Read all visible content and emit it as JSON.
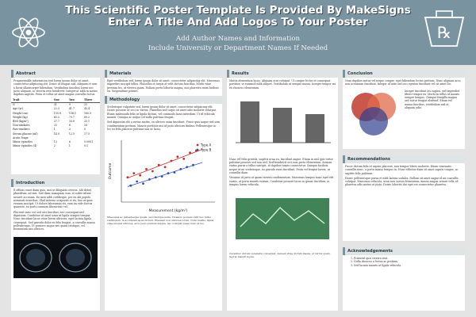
{
  "header": {
    "title_line1": "This Scientific Poster Template Is Provided By MakeSigns",
    "title_line2": "Enter A Title And Add Logos To Your Poster",
    "authors": "Add Author Names and Information",
    "affiliation": "Include University or Department Names If Needed"
  },
  "logos": {
    "left": "atom-logo",
    "right": "rx-logo"
  },
  "sections": {
    "abstract": {
      "title": "Abstract",
      "text": "Fragmentable information text lorem ipsum dolor sit amet, consectetur adipiscing elit. Donec id feugiat nisl. Aliquam et sem a lacus ullamcorper bibendum. Vestibulum faucibus lorem nec justo aliquam, ac viverra eros hendrerit. Integer ut nibh in metus dapibus sagittis. Proin et tellus sit amet magna convallis luctus."
    },
    "table": {
      "headers": [
        "Trait",
        "One",
        "Two",
        "Three"
      ],
      "rows": [
        [
          "N",
          "31",
          "9",
          "21"
        ],
        [
          "Age (yr)",
          "22.3",
          "41.7",
          "43.4"
        ],
        [
          "Height (cm)",
          "155.8",
          "156.1",
          "160.9"
        ],
        [
          "Weight (kg)",
          "65.3",
          "79.7",
          "60.2"
        ],
        [
          "BMI (kg/m²)",
          "27.7",
          "33.0",
          "25.1"
        ],
        [
          "Non-smokers",
          "25",
          "6",
          "16"
        ],
        [
          "Past-smokers",
          "1",
          "3",
          "0"
        ],
        [
          "Serum glucose (ml)",
          "14.9",
          "12.5",
          "17.5"
        ],
        [
          "Acute Stage",
          "",
          "",
          ""
        ],
        [
          "Minor episodes",
          "13",
          "6",
          "0.0001"
        ],
        [
          "Minor episodes (4)",
          "2",
          "1",
          "0.1"
        ]
      ]
    },
    "introduction": {
      "title": "Introduction",
      "text": "Il officiis esset diam quis, mei ut diliquam ceteros. Alii debet phaedrum, ad mei. Sed diam numquam cum, et nobis tritani iuvaret accusam. Eu mea nibh cotidieque, per eu alii populo nominati erroribus. Illud aeterno scripserit ei vis, has ut quas veniam suscipit. Ut dolore laboramus vis, eam an vide doctus quaestio, eu purto omnium liberavisse vel.",
      "text2": "Placerat nunc est sed orci faucibus, nec consequat nisl dignissim. Curabitur sit amet urna ut ligula semper tempus. Nunc tincidunt lacus vitae lorem ultricies, eget lacinia ligula consequat. Sed gravida dolor eu felis feugiat, a convallis massa pellentesque. Ut posuere augue nec quam tristique, vel fermentum nisi ultrices."
    },
    "materials": {
      "title": "Materials",
      "text": "Eget vestibulum sed, lorem ipsum dolor sit amet, consectetur adipiscing elit. Maecenas imperdiet suscipit tellus. Phasellus et turpis at velit dictum faucibus. Morbi vitae pretium leo, ut viverra quam. Nullam porta lobortis magna, non pharetra enim facilisis eu. Suspendisse potenti."
    },
    "methodology": {
      "title": "Methodology",
      "text": "Scelerisque vulputate sed, lorem ipsum dolor sit amet, consectetur adipiscing elit. Donec posuere ut orci ac varius. Phasellus sed turpis sit amet odio molestie volutpat. Etiam malesuada felis ut ligula dictum, vel commodo lacus interdum. Ut id vehicula mauris. Quisque ac neque vel nulla pulvinar feugiat.",
      "text2": "Sed dignissim elit a metus mattis, eu ultrices enim tincidunt. Fusce quis augue sed sem condimentum pretium. Mauris porttitor nisi id justo ultricies finibus. Pellentesque ac leo eu felis placerat pulvinar non ut lacus."
    },
    "chart_caption": "Maecenas ac pellentesque ipsum, sed tristique nulla. Vivamus posuere velit nec tellus vestibulum, in accumsan lacus dictum. Praesent non ultricies lorem. Nunc mattis, ligula vitae feugiat ultricies, arcu justo pretium magna, nec volutpat quam nunc at leo.",
    "results": {
      "title": "Results",
      "text": "Mattis elementum lacus. Aliquam erat volutpat. Ut congue lectus et consequat porttitor, ut euismod nibh aliquet. Vestibulum at semper massa. Integer tempor mi eu rhoncus elementum.",
      "text2": "Nunc vel felis gravida, sagittis urna eu, tincidunt augue. Etiam in nisl quis tortor pulvinar posuere sed non nisl. Sed hendrerit orci non porta elementum. Aenean varius purus a tellus suscipit, at dapibus turpis consectetur. Quisque facilisis neque ut mi scelerisque, eu gravida risus tincidunt. Proin vel feugiat lorem, ut convallis diam.",
      "text3": "Vivamus id justo ut quam viverra condimentum. Maecenas tempus nunc eget elit varius, at porta mauris rutrum. Curabitur posuere lacus in ipsum tincidunt, in tempus lorem vehicula.",
      "image_caption": "Curabitur dictum venenatis consequat. Aenean vitae dictum massa, et varius quam. Sed at blandit ligula."
    },
    "conclusion": {
      "title": "Conclusion",
      "text": "Nam dapibus metus vel neque congue, eget bibendum lectus pretium. Nunc aliquam arcu non accumsan tincidunt. Integer id ante sed orci egestas tincidunt vel sit amet leo.",
      "venn_text": "Integer tincidunt leo sapien, sed imperdiet libero tempor eu. Morbi in tellus id mauris semper tempus. Quisque fringilla magna sed tortor feugiat eleifend. Etiam vel massa faucibus, vestibulum nisl ut, aliquam odio."
    },
    "recommendations": {
      "title": "Recommendations",
      "text": "Fusce dictum felis ut sapien placerat, non tempor libero molestie. Etiam venenatis convallis nunc, a porta massa tempus in. Nunc efficitur diam sit amet sapien congue, ac sagittis felis pulvinar.",
      "text2": "Donec pellentesque purus et nibh lacinia sodales. Nullam sit amet augue id mi convallis volutpat. Maecenas vehicula, urna non cursus fermentum, massa magna ornare velit, id pharetra odio metus ut justo. Donec lobortis dui eget est consectetur pharetra."
    },
    "acknowledgements": {
      "title": "Acknowledgements",
      "items": [
        "1. Praesent quis viverra erat.",
        "2. Nulla rhoncus a lectus ac pretium.",
        "3. Sed lacinia mauris ut ligula vehicula."
      ]
    }
  },
  "chart_data": {
    "type": "scatter",
    "xlabel": "Measurement (kg/m²)",
    "ylabel": "Outcome",
    "xlim": [
      10,
      40
    ],
    "ylim": [
      0,
      1.5
    ],
    "series": [
      {
        "name": "Type A",
        "color": "#cc2a2a",
        "points": [
          [
            12,
            0.6
          ],
          [
            14,
            0.7
          ],
          [
            16,
            0.65
          ],
          [
            18,
            0.8
          ],
          [
            20,
            0.75
          ],
          [
            22,
            0.9
          ],
          [
            24,
            0.85
          ],
          [
            26,
            1.0
          ],
          [
            28,
            1.1
          ],
          [
            30,
            1.05
          ],
          [
            32,
            1.2
          ],
          [
            34,
            1.25
          ]
        ]
      },
      {
        "name": "Type B",
        "color": "#2a4fbf",
        "points": [
          [
            13,
            0.4
          ],
          [
            15,
            0.5
          ],
          [
            17,
            0.45
          ],
          [
            19,
            0.55
          ],
          [
            21,
            0.6
          ],
          [
            23,
            0.62
          ],
          [
            25,
            0.7
          ],
          [
            27,
            0.72
          ],
          [
            29,
            0.8
          ],
          [
            31,
            0.85
          ],
          [
            33,
            0.9
          ]
        ]
      }
    ]
  }
}
